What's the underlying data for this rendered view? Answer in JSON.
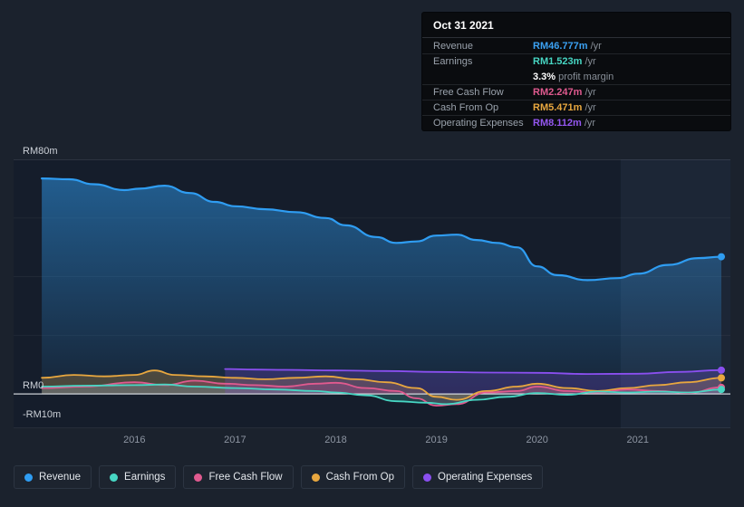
{
  "tooltip": {
    "title": "Oct 31 2021",
    "rows": [
      {
        "label": "Revenue",
        "value": "RM46.777m",
        "suffix": " /yr",
        "color": "#3ba1f2"
      },
      {
        "label": "Earnings",
        "value": "RM1.523m",
        "suffix": " /yr",
        "color": "#47d6c3"
      },
      {
        "label": "Free Cash Flow",
        "value": "RM2.247m",
        "suffix": " /yr",
        "color": "#e05a8f"
      },
      {
        "label": "Cash From Op",
        "value": "RM5.471m",
        "suffix": " /yr",
        "color": "#e8a73f"
      },
      {
        "label": "Operating Expenses",
        "value": "RM8.112m",
        "suffix": " /yr",
        "color": "#9457f0"
      }
    ],
    "margin": {
      "value": "3.3%",
      "label": "profit margin"
    }
  },
  "legend": {
    "items": [
      {
        "label": "Revenue",
        "color": "#2f9df2"
      },
      {
        "label": "Earnings",
        "color": "#47d6c3"
      },
      {
        "label": "Free Cash Flow",
        "color": "#e05a8f"
      },
      {
        "label": "Cash From Op",
        "color": "#e8a73f"
      },
      {
        "label": "Operating Expenses",
        "color": "#8a4fef"
      }
    ]
  },
  "chart_data": {
    "type": "area",
    "unit": "RM millions per year",
    "title": "",
    "xlabel": "",
    "ylabel": "",
    "legend_position": "bottom",
    "grid": true,
    "x_range": [
      2014.8,
      2021.92
    ],
    "y_range": [
      -11.7,
      80
    ],
    "x_ticks": [
      2016,
      2017,
      2018,
      2019,
      2020,
      2021
    ],
    "y_gridlines": [
      80,
      60,
      40,
      20
    ],
    "zero_line": 0,
    "highlight_band_start": 2020.83,
    "y_axis_labels": [
      {
        "text": "RM80m",
        "value": 80
      },
      {
        "text": "RM0",
        "value": 0
      },
      {
        "text": "-RM10m",
        "value": -10
      }
    ],
    "series": [
      {
        "name": "Revenue",
        "color": "#2f9df2",
        "gradient": true,
        "x": [
          2015.08,
          2015.35,
          2015.6,
          2015.9,
          2016.05,
          2016.3,
          2016.55,
          2016.8,
          2017.0,
          2017.3,
          2017.6,
          2017.9,
          2018.1,
          2018.4,
          2018.6,
          2018.8,
          2019.0,
          2019.2,
          2019.4,
          2019.6,
          2019.8,
          2020.0,
          2020.2,
          2020.5,
          2020.8,
          2021.0,
          2021.3,
          2021.6,
          2021.83
        ],
        "values": [
          73.5,
          73.2,
          71.5,
          69.5,
          70.0,
          71.0,
          68.5,
          65.5,
          64.0,
          63.0,
          62.0,
          60.0,
          57.5,
          53.5,
          51.5,
          52.0,
          54.0,
          54.3,
          52.5,
          51.5,
          50.0,
          43.5,
          40.5,
          38.8,
          39.5,
          41.0,
          44.0,
          46.3,
          46.777
        ]
      },
      {
        "name": "Cash From Op",
        "color": "#e8a73f",
        "fill_opacity": 0.25,
        "x": [
          2015.08,
          2015.4,
          2015.7,
          2016.0,
          2016.2,
          2016.4,
          2016.7,
          2017.0,
          2017.3,
          2017.6,
          2017.9,
          2018.2,
          2018.5,
          2018.8,
          2019.0,
          2019.2,
          2019.5,
          2019.8,
          2020.0,
          2020.3,
          2020.6,
          2020.9,
          2021.2,
          2021.5,
          2021.83
        ],
        "values": [
          5.5,
          6.5,
          6.0,
          6.5,
          8.0,
          6.5,
          6.0,
          5.5,
          5.0,
          5.5,
          6.0,
          5.0,
          4.0,
          2.0,
          -1.0,
          -2.0,
          1.0,
          2.5,
          3.5,
          2.0,
          1.0,
          2.0,
          3.0,
          4.0,
          5.471
        ]
      },
      {
        "name": "Free Cash Flow",
        "color": "#e05a8f",
        "fill_opacity": 0.22,
        "x": [
          2015.08,
          2015.5,
          2016.0,
          2016.3,
          2016.6,
          2016.9,
          2017.2,
          2017.5,
          2017.8,
          2018.0,
          2018.3,
          2018.6,
          2018.8,
          2019.0,
          2019.2,
          2019.5,
          2019.8,
          2020.0,
          2020.3,
          2020.6,
          2020.9,
          2021.2,
          2021.5,
          2021.83
        ],
        "values": [
          2.0,
          2.5,
          4.0,
          3.0,
          4.5,
          3.5,
          3.0,
          2.5,
          3.5,
          3.8,
          2.0,
          1.0,
          -1.5,
          -4.0,
          -3.5,
          0.5,
          1.0,
          2.5,
          1.0,
          0.5,
          1.5,
          1.0,
          0.3,
          2.247
        ]
      },
      {
        "name": "Earnings",
        "color": "#47d6c3",
        "fill_opacity": 0.2,
        "x": [
          2015.08,
          2015.5,
          2016.0,
          2016.3,
          2016.6,
          2017.0,
          2017.4,
          2017.8,
          2018.0,
          2018.3,
          2018.6,
          2018.9,
          2019.1,
          2019.4,
          2019.7,
          2020.0,
          2020.3,
          2020.6,
          2020.9,
          2021.2,
          2021.5,
          2021.83
        ],
        "values": [
          2.5,
          2.8,
          3.0,
          3.2,
          2.5,
          2.0,
          1.5,
          1.0,
          0.5,
          -0.5,
          -2.5,
          -3.0,
          -3.5,
          -2.0,
          -1.0,
          0.3,
          -0.3,
          0.8,
          0.5,
          0.8,
          0.5,
          1.523
        ]
      },
      {
        "name": "Operating Expenses",
        "color": "#8a4fef",
        "fill_opacity": 0.22,
        "x": [
          2016.9,
          2017.2,
          2017.5,
          2018.0,
          2018.5,
          2019.0,
          2019.5,
          2020.0,
          2020.5,
          2021.0,
          2021.4,
          2021.83
        ],
        "values": [
          8.5,
          8.3,
          8.2,
          8.0,
          7.8,
          7.5,
          7.3,
          7.2,
          6.8,
          6.9,
          7.5,
          8.112
        ]
      }
    ]
  }
}
